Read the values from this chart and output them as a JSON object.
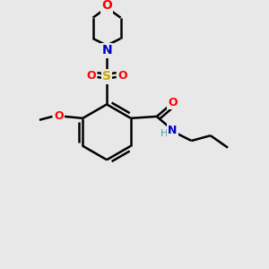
{
  "bg_color": "#e8e8e8",
  "atom_colors": {
    "C": "#000000",
    "O": "#ff0000",
    "N": "#0000cc",
    "S": "#ccaa00",
    "H": "#40a0a0"
  },
  "bond_color": "#000000",
  "bond_width": 1.8,
  "figsize": [
    3.0,
    3.0
  ],
  "dpi": 100
}
